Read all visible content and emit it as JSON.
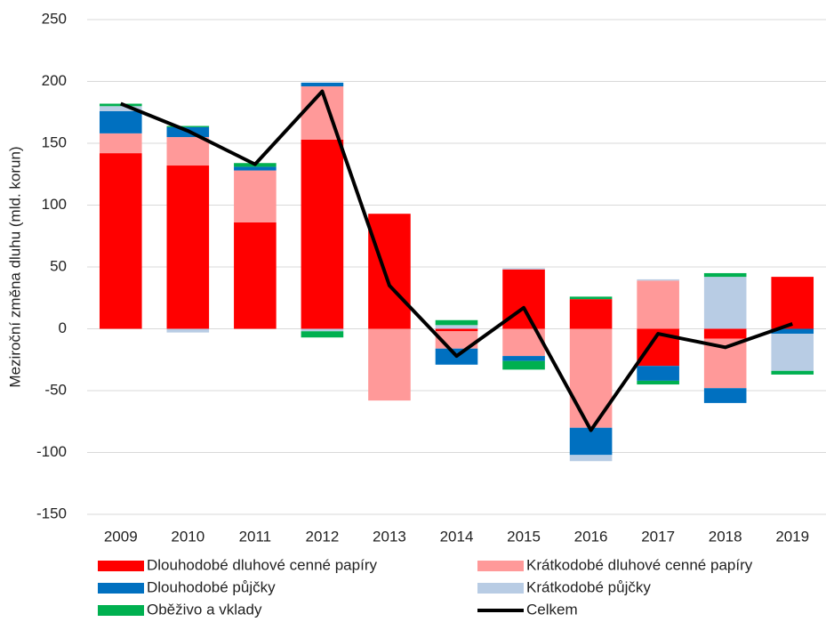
{
  "chart_data": {
    "type": "bar",
    "stacked": true,
    "y_label": "Meziroční změna dluhu (mld. korun)",
    "categories": [
      "2009",
      "2010",
      "2011",
      "2012",
      "2013",
      "2014",
      "2015",
      "2016",
      "2017",
      "2018",
      "2019"
    ],
    "series": [
      {
        "name": "Dlouhodobé dluhové cenné papíry",
        "color": "#ff0000",
        "values": [
          142,
          132,
          86,
          153,
          93,
          -2,
          48,
          24,
          -30,
          -8,
          42
        ]
      },
      {
        "name": "Krátkodobé dluhové cenné papíry",
        "color": "#ff9999",
        "values": [
          16,
          23,
          42,
          43,
          -58,
          -14,
          -22,
          -80,
          39,
          -40,
          0
        ]
      },
      {
        "name": "Dlouhodobé půjčky",
        "color": "#0070c0",
        "values": [
          18,
          8,
          3,
          3,
          0,
          -13,
          -4,
          -22,
          -12,
          -12,
          -4
        ]
      },
      {
        "name": "Krátkodobé půjčky",
        "color": "#b8cce4",
        "values": [
          4,
          -3,
          0,
          -2,
          0,
          3,
          1,
          -5,
          1,
          42,
          -30
        ]
      },
      {
        "name": "Oběživo a vklady",
        "color": "#00b050",
        "values": [
          2,
          1,
          3,
          -5,
          0,
          4,
          -7,
          2,
          -3,
          3,
          -3
        ]
      },
      {
        "name": "Celkem",
        "color": "#000000",
        "type": "line",
        "values": [
          182,
          160,
          133,
          192,
          35,
          -22,
          17,
          -82,
          -4,
          -15,
          4
        ]
      }
    ],
    "ylim": [
      -150,
      250
    ],
    "yticks": [
      -150,
      -100,
      -50,
      0,
      50,
      100,
      150,
      200,
      250
    ],
    "grid": true
  }
}
